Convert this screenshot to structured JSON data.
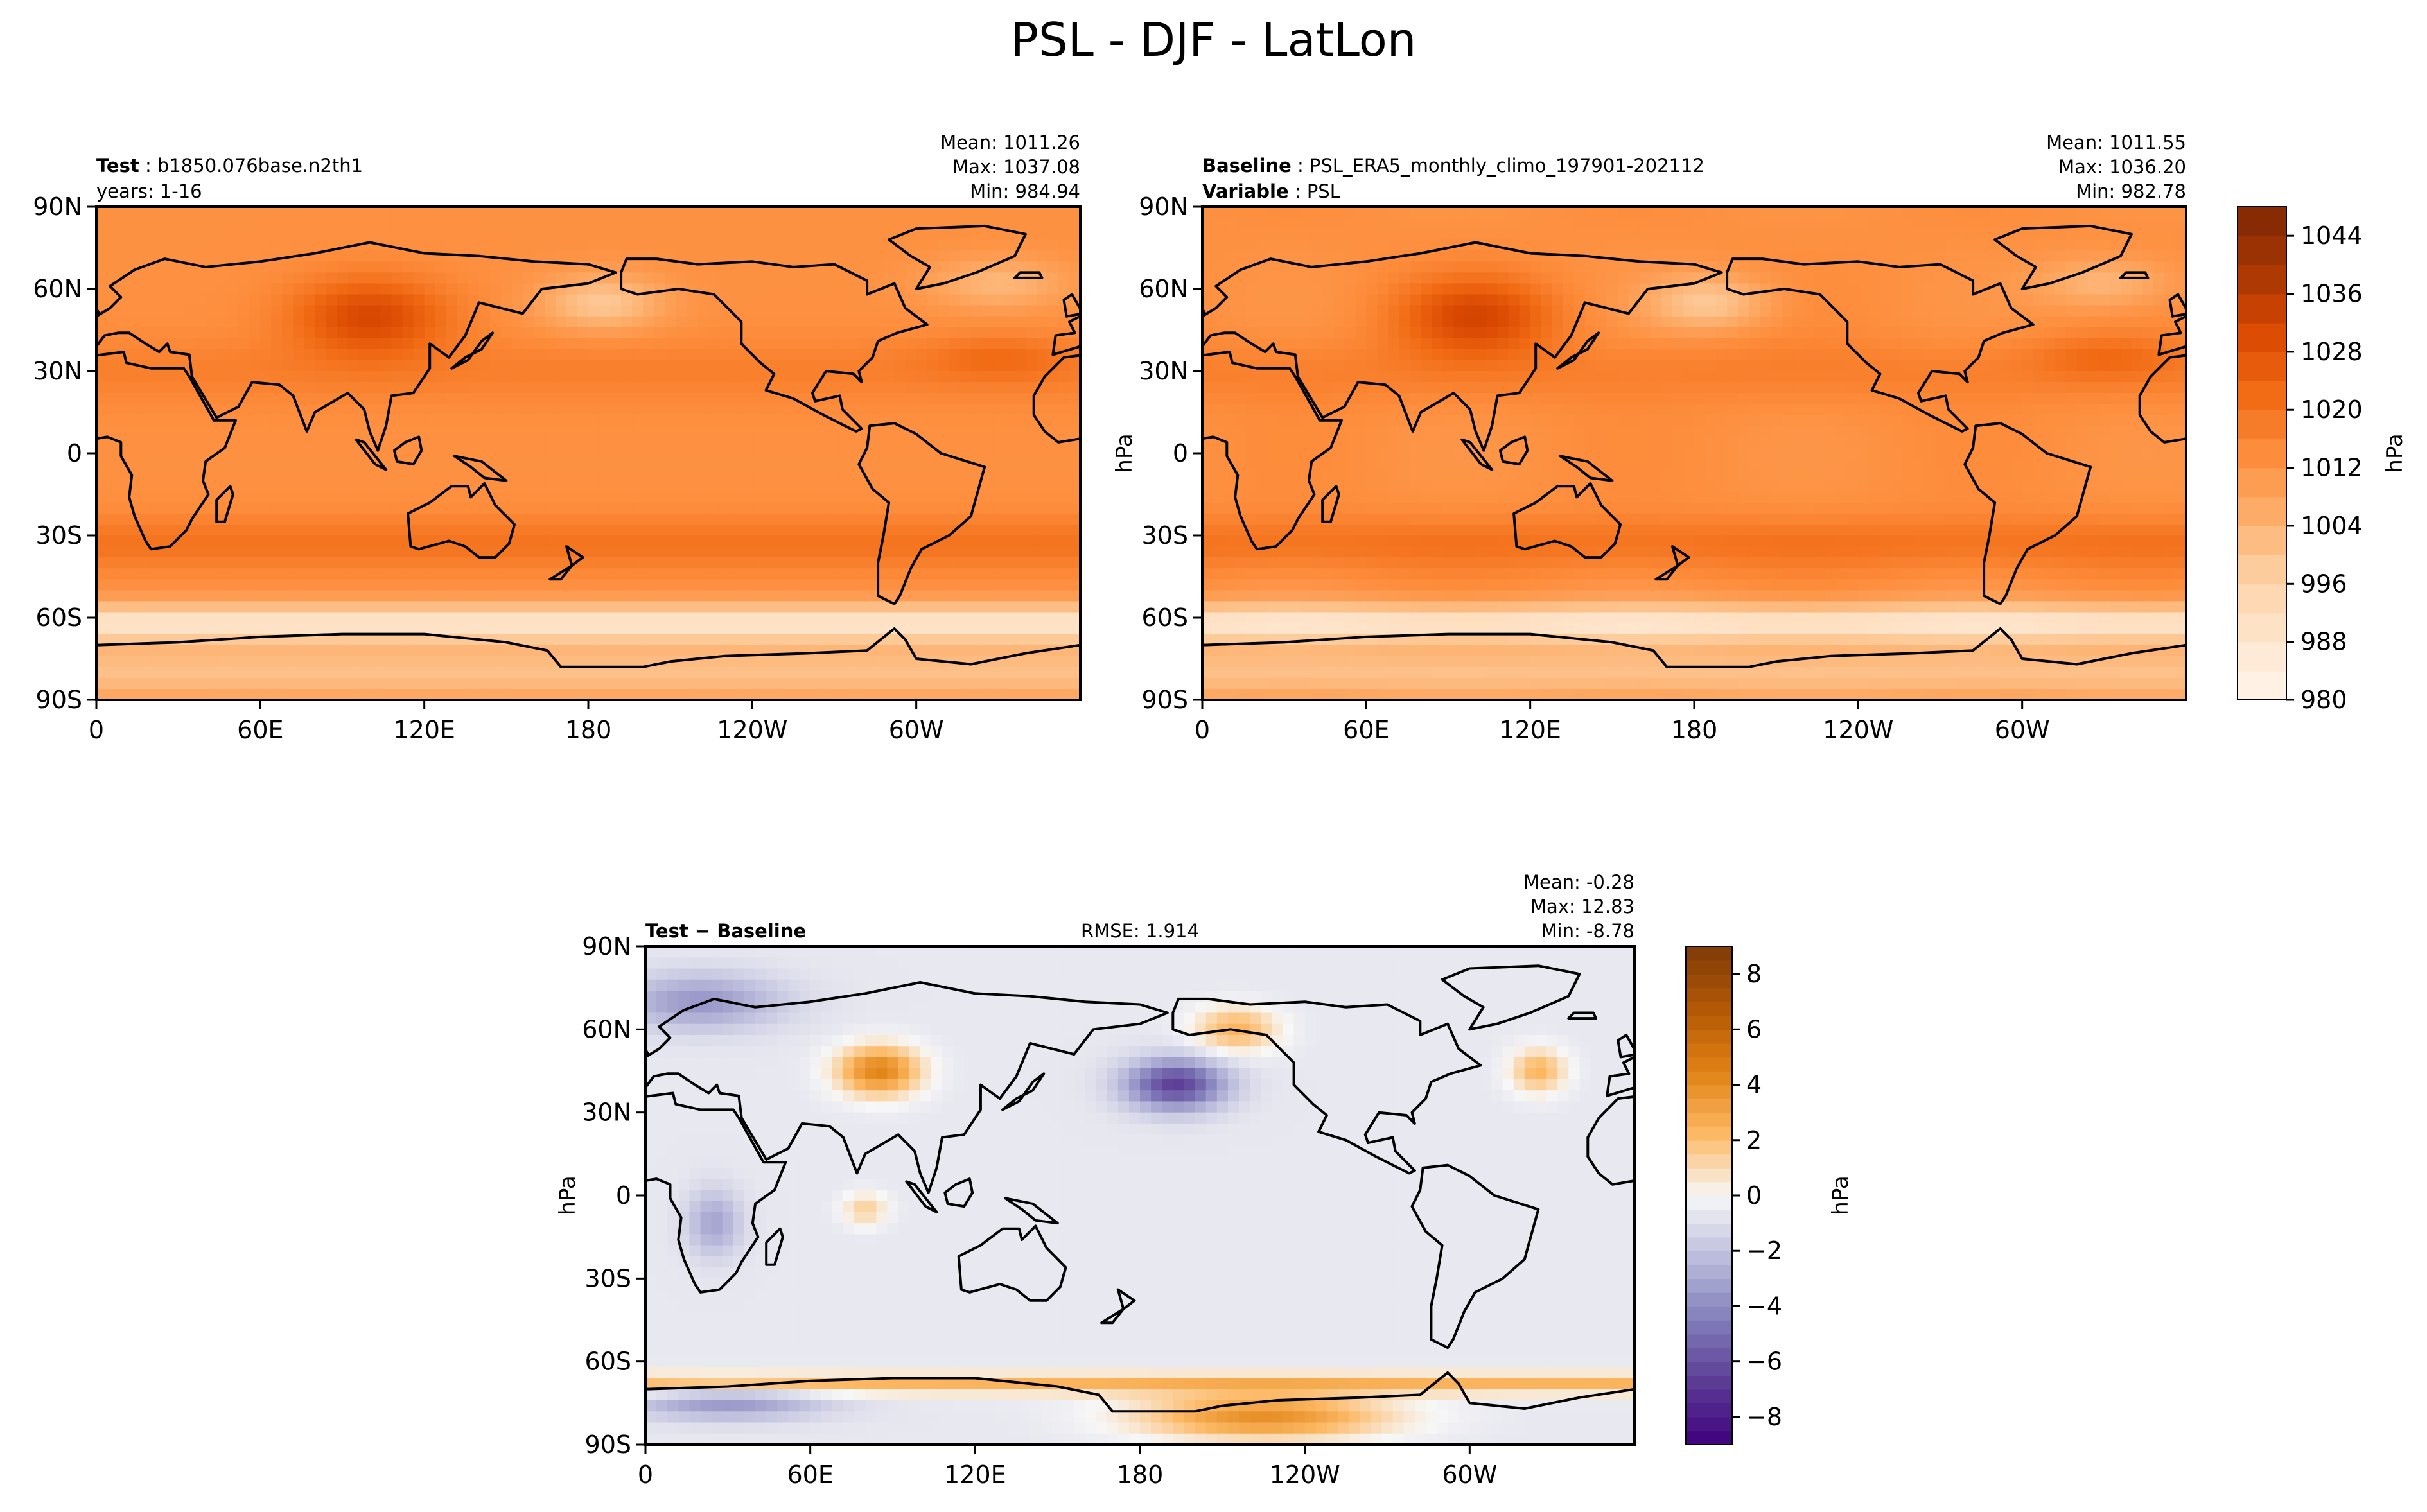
{
  "title": "PSL - DJF - LatLon",
  "colors": {
    "seq": [
      "#fff5eb",
      "#fee6ce",
      "#fdd0a2",
      "#fdae6b",
      "#fd8d3c",
      "#f16913",
      "#d94801",
      "#a63603",
      "#7f2704"
    ],
    "div": [
      "#3f007d",
      "#5c3b95",
      "#807dba",
      "#bcbddc",
      "#f7f7f7",
      "#fdb863",
      "#e08214",
      "#b35806",
      "#7f3b08"
    ],
    "land": "#000000"
  },
  "chart_data": [
    {
      "type": "heatmap",
      "name": "test",
      "header_left": [
        {
          "bold": "Test",
          "text": "b1850.076base.n2th1"
        },
        {
          "bold": "",
          "text": "years: 1-16"
        }
      ],
      "stats": [
        "Mean: 1011.26",
        "Max: 1037.08",
        "Min: 984.94"
      ],
      "x_ticks": [
        "0",
        "60E",
        "120E",
        "180",
        "120W",
        "60W"
      ],
      "y_ticks": [
        "90N",
        "60N",
        "30N",
        "0",
        "30S",
        "60S",
        "90S"
      ],
      "xlim": [
        0,
        360
      ],
      "ylim": [
        -90,
        90
      ],
      "value_range": [
        980,
        1048
      ],
      "ylabel": ""
    },
    {
      "type": "heatmap",
      "name": "baseline",
      "header_left": [
        {
          "bold": "Baseline",
          "text": "PSL_ERA5_monthly_climo_197901-202112"
        },
        {
          "bold": "Variable",
          "text": "PSL"
        }
      ],
      "stats": [
        "Mean: 1011.55",
        "Max: 1036.20",
        "Min: 982.78"
      ],
      "x_ticks": [
        "0",
        "60E",
        "120E",
        "180",
        "120W",
        "60W"
      ],
      "y_ticks": [
        "90N",
        "60N",
        "30N",
        "0",
        "30S",
        "60S",
        "90S"
      ],
      "xlim": [
        0,
        360
      ],
      "ylim": [
        -90,
        90
      ],
      "value_range": [
        980,
        1048
      ],
      "ylabel": "hPa",
      "colorbar": {
        "ticks": [
          "1044",
          "1036",
          "1028",
          "1020",
          "1012",
          "1004",
          "996",
          "988",
          "980"
        ],
        "tick_values": [
          1044,
          1036,
          1028,
          1020,
          1012,
          1004,
          996,
          988,
          980
        ],
        "range": [
          980,
          1048
        ],
        "label": "hPa"
      }
    },
    {
      "type": "heatmap",
      "name": "difference",
      "header_left": [
        {
          "bold": "Test − Baseline",
          "text": ""
        }
      ],
      "header_center": "RMSE: 1.914",
      "stats": [
        "Mean: -0.28",
        "Max: 12.83",
        "Min: -8.78"
      ],
      "x_ticks": [
        "0",
        "60E",
        "120E",
        "180",
        "120W",
        "60W"
      ],
      "y_ticks": [
        "90N",
        "60N",
        "30N",
        "0",
        "30S",
        "60S",
        "90S"
      ],
      "xlim": [
        0,
        360
      ],
      "ylim": [
        -90,
        90
      ],
      "value_range": [
        -9,
        9
      ],
      "ylabel": "hPa",
      "colorbar": {
        "ticks": [
          "8",
          "6",
          "4",
          "2",
          "0",
          "−2",
          "−4",
          "−6",
          "−8"
        ],
        "tick_values": [
          8,
          6,
          4,
          2,
          0,
          -2,
          -4,
          -6,
          -8
        ],
        "range": [
          -9,
          9
        ],
        "label": "hPa"
      }
    }
  ]
}
